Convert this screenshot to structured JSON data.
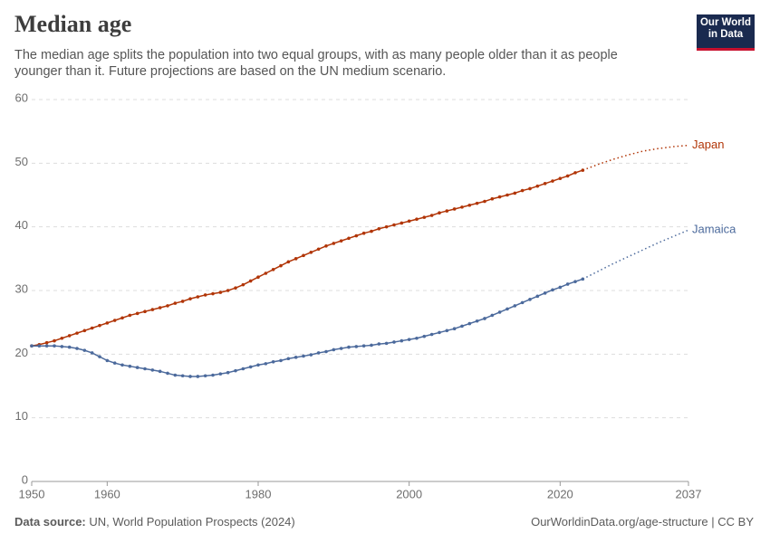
{
  "chart_data": {
    "type": "line",
    "title": "Median age",
    "subtitle": "The median age splits the population into two equal groups, with as many people older than it as people younger than it. Future projections are based on the UN medium scenario.",
    "logo": [
      "Our World",
      "in Data"
    ],
    "source_label": "Data source:",
    "source": "UN, World Population Prospects (2024)",
    "url": "OurWorldinData.org/age-structure | CC BY",
    "x": [
      1950,
      1951,
      1952,
      1953,
      1954,
      1955,
      1956,
      1957,
      1958,
      1959,
      1960,
      1961,
      1962,
      1963,
      1964,
      1965,
      1966,
      1967,
      1968,
      1969,
      1970,
      1971,
      1972,
      1973,
      1974,
      1975,
      1976,
      1977,
      1978,
      1979,
      1980,
      1981,
      1982,
      1983,
      1984,
      1985,
      1986,
      1987,
      1988,
      1989,
      1990,
      1991,
      1992,
      1993,
      1994,
      1995,
      1996,
      1997,
      1998,
      1999,
      2000,
      2001,
      2002,
      2003,
      2004,
      2005,
      2006,
      2007,
      2008,
      2009,
      2010,
      2011,
      2012,
      2013,
      2014,
      2015,
      2016,
      2017,
      2018,
      2019,
      2020,
      2021,
      2022,
      2023
    ],
    "series": [
      {
        "name": "Japan",
        "color": "#b13507",
        "values": [
          21.3,
          21.5,
          21.8,
          22.1,
          22.5,
          22.9,
          23.3,
          23.7,
          24.1,
          24.5,
          24.9,
          25.3,
          25.7,
          26.1,
          26.4,
          26.7,
          27.0,
          27.3,
          27.6,
          28.0,
          28.3,
          28.7,
          29.0,
          29.3,
          29.5,
          29.7,
          30.0,
          30.4,
          30.9,
          31.5,
          32.1,
          32.7,
          33.3,
          33.9,
          34.5,
          35.0,
          35.5,
          36.0,
          36.5,
          37.0,
          37.4,
          37.8,
          38.2,
          38.6,
          39.0,
          39.3,
          39.7,
          40.0,
          40.3,
          40.6,
          40.9,
          41.2,
          41.5,
          41.8,
          42.2,
          42.5,
          42.8,
          43.1,
          43.4,
          43.7,
          44.0,
          44.4,
          44.7,
          45.0,
          45.3,
          45.7,
          46.0,
          46.4,
          46.8,
          47.2,
          47.6,
          48.0,
          48.5,
          48.9
        ],
        "projection": {
          "x": [
            2023,
            2025,
            2027,
            2029,
            2031,
            2033,
            2035,
            2037
          ],
          "values": [
            48.9,
            49.8,
            50.6,
            51.3,
            51.9,
            52.3,
            52.6,
            52.8
          ]
        }
      },
      {
        "name": "Jamaica",
        "color": "#4c6a9c",
        "values": [
          21.3,
          21.3,
          21.3,
          21.3,
          21.2,
          21.1,
          20.9,
          20.6,
          20.2,
          19.6,
          19.0,
          18.6,
          18.3,
          18.1,
          17.9,
          17.7,
          17.5,
          17.3,
          17.0,
          16.7,
          16.6,
          16.5,
          16.5,
          16.6,
          16.7,
          16.9,
          17.1,
          17.4,
          17.7,
          18.0,
          18.3,
          18.5,
          18.8,
          19.0,
          19.3,
          19.5,
          19.7,
          19.9,
          20.2,
          20.4,
          20.7,
          20.9,
          21.1,
          21.2,
          21.3,
          21.4,
          21.6,
          21.7,
          21.9,
          22.1,
          22.3,
          22.5,
          22.8,
          23.1,
          23.4,
          23.7,
          24.0,
          24.4,
          24.8,
          25.2,
          25.6,
          26.1,
          26.6,
          27.1,
          27.6,
          28.1,
          28.6,
          29.1,
          29.6,
          30.1,
          30.5,
          31.0,
          31.4,
          31.8
        ],
        "projection": {
          "x": [
            2023,
            2025,
            2027,
            2029,
            2031,
            2033,
            2035,
            2037
          ],
          "values": [
            31.8,
            33.0,
            34.2,
            35.3,
            36.4,
            37.5,
            38.5,
            39.5
          ]
        }
      }
    ],
    "xlim": [
      1950,
      2037
    ],
    "xticks": [
      1950,
      1960,
      1980,
      2000,
      2020,
      2037
    ],
    "ylim": [
      0,
      60
    ],
    "yticks": [
      0,
      10,
      20,
      30,
      40,
      50,
      60
    ],
    "grid": true
  }
}
